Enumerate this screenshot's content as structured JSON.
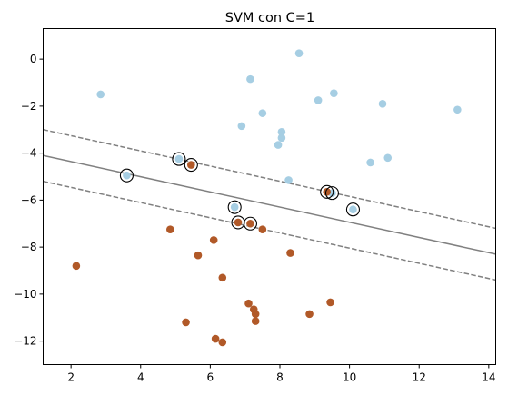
{
  "chart_data": {
    "type": "scatter",
    "title": "SVM con C=1",
    "xlabel": "",
    "ylabel": "",
    "xlim": [
      1.2,
      14.2
    ],
    "ylim": [
      -13.0,
      1.3
    ],
    "xticks": [
      2,
      4,
      6,
      8,
      10,
      12,
      14
    ],
    "yticks": [
      0,
      -2,
      -4,
      -6,
      -8,
      -10,
      -12
    ],
    "grid": false,
    "colors": {
      "class_a": "#a6cee3",
      "class_b": "#b15928",
      "decision_boundary": "#808080",
      "support_vector_ring": "#000000"
    },
    "series": [
      {
        "points": [
          [
            8.55,
            0.25
          ],
          [
            7.15,
            -0.85
          ],
          [
            2.85,
            -1.5
          ],
          [
            7.5,
            -2.3
          ],
          [
            9.55,
            -1.45
          ],
          [
            9.1,
            -1.75
          ],
          [
            10.95,
            -1.9
          ],
          [
            13.1,
            -2.15
          ],
          [
            6.9,
            -2.85
          ],
          [
            8.05,
            -3.1
          ],
          [
            8.05,
            -3.35
          ],
          [
            7.95,
            -3.65
          ],
          [
            10.6,
            -4.4
          ],
          [
            11.1,
            -4.2
          ],
          [
            8.25,
            -5.15
          ],
          [
            3.6,
            -4.95
          ],
          [
            5.1,
            -4.25
          ],
          [
            9.5,
            -5.7
          ],
          [
            10.1,
            -6.4
          ],
          [
            6.7,
            -6.3
          ]
        ]
      },
      {
        "points": [
          [
            5.45,
            -4.5
          ],
          [
            9.35,
            -5.65
          ],
          [
            6.8,
            -6.95
          ],
          [
            7.15,
            -7.0
          ],
          [
            7.5,
            -7.25
          ],
          [
            4.85,
            -7.25
          ],
          [
            6.1,
            -7.7
          ],
          [
            5.65,
            -8.35
          ],
          [
            8.3,
            -8.25
          ],
          [
            2.15,
            -8.8
          ],
          [
            6.35,
            -9.3
          ],
          [
            7.1,
            -10.4
          ],
          [
            7.25,
            -10.65
          ],
          [
            7.3,
            -10.85
          ],
          [
            7.3,
            -11.15
          ],
          [
            8.85,
            -10.85
          ],
          [
            9.45,
            -10.35
          ],
          [
            5.3,
            -11.2
          ],
          [
            6.15,
            -11.9
          ],
          [
            6.35,
            -12.05
          ]
        ]
      }
    ],
    "support_vectors": [
      [
        3.6,
        -4.95
      ],
      [
        5.1,
        -4.25
      ],
      [
        5.45,
        -4.5
      ],
      [
        6.7,
        -6.3
      ],
      [
        6.8,
        -6.95
      ],
      [
        7.15,
        -7.0
      ],
      [
        9.35,
        -5.65
      ],
      [
        9.5,
        -5.7
      ],
      [
        10.1,
        -6.4
      ]
    ],
    "decision_function": {
      "boundary": [
        [
          1.2,
          -4.1
        ],
        [
          14.2,
          -8.3
        ]
      ],
      "margin_upper": [
        [
          1.2,
          -3.0
        ],
        [
          14.2,
          -7.2
        ]
      ],
      "margin_lower": [
        [
          1.2,
          -5.2
        ],
        [
          14.2,
          -9.4
        ]
      ]
    }
  }
}
